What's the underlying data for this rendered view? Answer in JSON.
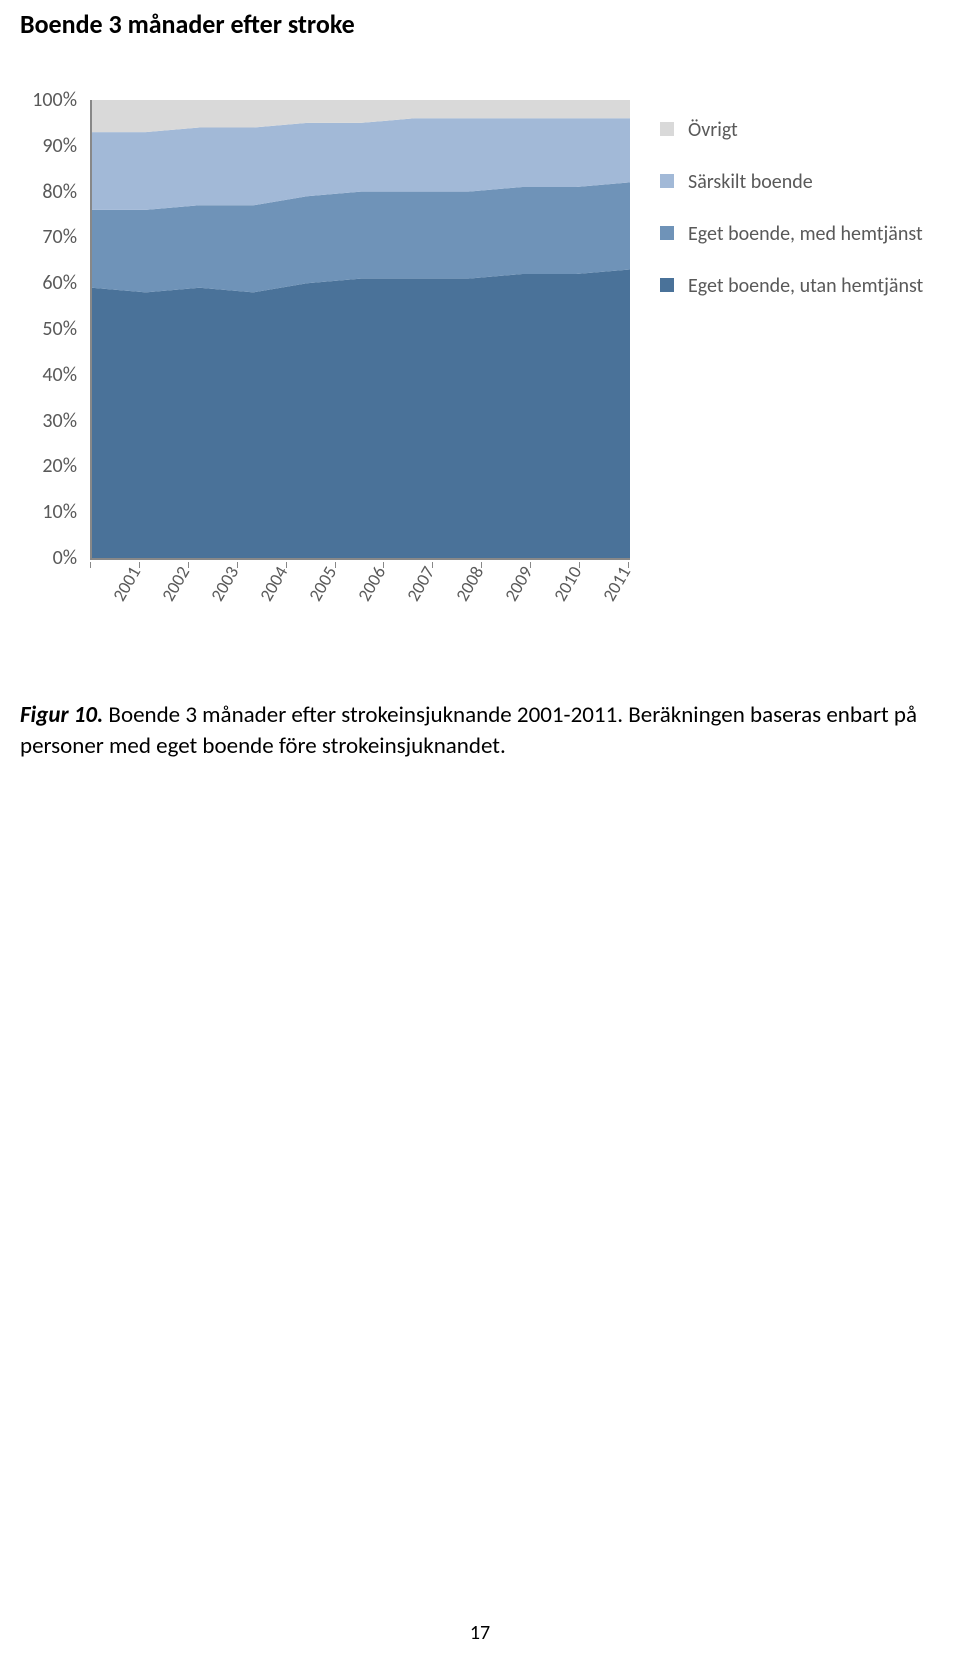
{
  "title": "Boende 3 månader efter stroke",
  "caption_lead": "Figur 10.",
  "caption_rest": " Boende 3 månader efter strokeinsjuknande 2001-2011. Beräkningen baseras enbart på personer med eget boende före strokeinsjuknandet.",
  "page_number": "17",
  "chart": {
    "type": "stacked_area_100",
    "background_color": "#ffffff",
    "axis_color": "#888888",
    "tick_label_color": "#595959",
    "tick_label_fontsize": 18,
    "categories": [
      "2001",
      "2002",
      "2003",
      "2004",
      "2005",
      "2006",
      "2007",
      "2008",
      "2009",
      "2010",
      "2011"
    ],
    "y_ticks": [
      0,
      10,
      20,
      30,
      40,
      50,
      60,
      70,
      80,
      90,
      100
    ],
    "y_tick_labels": [
      "0%",
      "10%",
      "20%",
      "30%",
      "40%",
      "50%",
      "60%",
      "70%",
      "80%",
      "90%",
      "100%"
    ],
    "series": [
      {
        "name": "Eget boende, utan hemtjänst",
        "color": "#4a7299",
        "values": [
          59,
          58,
          59,
          58,
          60,
          61,
          61,
          61,
          62,
          62,
          63
        ]
      },
      {
        "name": "Eget boende, med hemtjänst",
        "color": "#6f93b8",
        "values": [
          17,
          18,
          18,
          19,
          19,
          19,
          19,
          19,
          19,
          19,
          19
        ]
      },
      {
        "name": "Särskilt boende",
        "color": "#a2b9d7",
        "values": [
          17,
          17,
          17,
          17,
          16,
          15,
          16,
          16,
          15,
          15,
          14
        ]
      },
      {
        "name": "Övrigt",
        "color": "#d9d9d9",
        "values": [
          7,
          7,
          6,
          6,
          5,
          5,
          4,
          4,
          4,
          4,
          4
        ]
      }
    ],
    "legend_order": [
      "Övrigt",
      "Särskilt boende",
      "Eget boende, med hemtjänst",
      "Eget boende, utan hemtjänst"
    ]
  }
}
